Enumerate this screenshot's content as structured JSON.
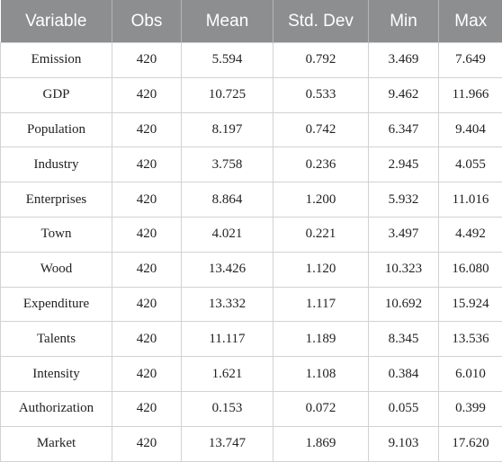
{
  "table": {
    "headers": [
      "Variable",
      "Obs",
      "Mean",
      "Std. Dev",
      "Min",
      "Max"
    ],
    "rows": [
      [
        "Emission",
        "420",
        "5.594",
        "0.792",
        "3.469",
        "7.649"
      ],
      [
        "GDP",
        "420",
        "10.725",
        "0.533",
        "9.462",
        "11.966"
      ],
      [
        "Population",
        "420",
        "8.197",
        "0.742",
        "6.347",
        "9.404"
      ],
      [
        "Industry",
        "420",
        "3.758",
        "0.236",
        "2.945",
        "4.055"
      ],
      [
        "Enterprises",
        "420",
        "8.864",
        "1.200",
        "5.932",
        "11.016"
      ],
      [
        "Town",
        "420",
        "4.021",
        "0.221",
        "3.497",
        "4.492"
      ],
      [
        "Wood",
        "420",
        "13.426",
        "1.120",
        "10.323",
        "16.080"
      ],
      [
        "Expenditure",
        "420",
        "13.332",
        "1.117",
        "10.692",
        "15.924"
      ],
      [
        "Talents",
        "420",
        "11.117",
        "1.189",
        "8.345",
        "13.536"
      ],
      [
        "Intensity",
        "420",
        "1.621",
        "1.108",
        "0.384",
        "6.010"
      ],
      [
        "Authorization",
        "420",
        "0.153",
        "0.072",
        "0.055",
        "0.399"
      ],
      [
        "Market",
        "420",
        "13.747",
        "1.869",
        "9.103",
        "17.620"
      ]
    ]
  }
}
